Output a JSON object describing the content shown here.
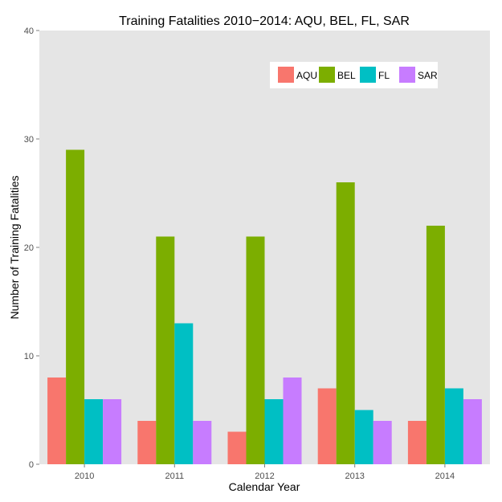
{
  "chart_data": {
    "type": "bar",
    "title": "Training Fatalities 2010−2014: AQU, BEL, FL, SAR",
    "xlabel": "Calendar Year",
    "ylabel": "Number of Training Fatalities",
    "categories": [
      "2010",
      "2011",
      "2012",
      "2013",
      "2014"
    ],
    "ylim": [
      0,
      40
    ],
    "yticks": [
      0,
      10,
      20,
      30,
      40
    ],
    "grid": false,
    "legend_position": "top-right",
    "series": [
      {
        "name": "AQU",
        "color": "#f8766d",
        "values": [
          8,
          4,
          3,
          7,
          4
        ]
      },
      {
        "name": "BEL",
        "color": "#7cae00",
        "values": [
          29,
          21,
          21,
          26,
          22
        ]
      },
      {
        "name": "FL",
        "color": "#00bfc4",
        "values": [
          6,
          13,
          6,
          5,
          7
        ]
      },
      {
        "name": "SAR",
        "color": "#c77cff",
        "values": [
          6,
          4,
          8,
          4,
          6
        ]
      }
    ],
    "panel_color": "#e5e5e5"
  }
}
